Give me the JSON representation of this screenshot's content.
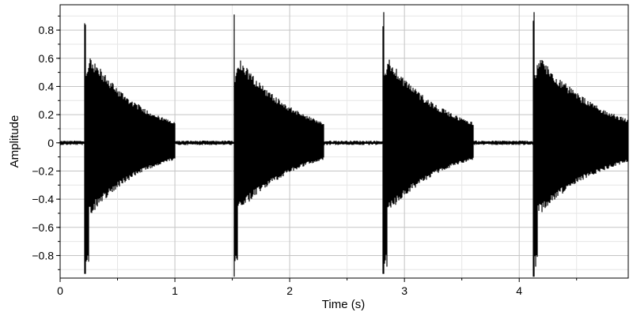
{
  "chart_data": {
    "type": "line",
    "title": "",
    "xlabel": "Time (s)",
    "ylabel": "Amplitude",
    "xlim": [
      0,
      4.95
    ],
    "ylim": [
      -0.96,
      0.98
    ],
    "grid": true,
    "x_ticks": [
      0,
      1,
      2,
      3,
      4
    ],
    "x_tick_labels": [
      "0",
      "1",
      "2",
      "3",
      "4"
    ],
    "y_ticks": [
      0.8,
      0.6,
      0.4,
      0.2,
      0,
      -0.2,
      -0.4,
      -0.6,
      -0.8
    ],
    "y_tick_labels": [
      "0.8",
      "0.6",
      "0.4",
      "0.2",
      "0",
      "−0.2",
      "−0.4",
      "−0.6",
      "−0.8"
    ],
    "line_color": "#000000",
    "grid_color": "#cccccc",
    "series": [
      {
        "bursts": [
          {
            "onset": 0.21,
            "end": 1.0,
            "peak_pos": 0.95,
            "peak_neg": -0.93,
            "body_peak": 0.62,
            "end_amplitude": 0.13
          },
          {
            "onset": 1.51,
            "end": 2.3,
            "peak_pos": 0.95,
            "peak_neg": -0.95,
            "body_peak": 0.6,
            "end_amplitude": 0.13
          },
          {
            "onset": 2.81,
            "end": 3.6,
            "peak_pos": 0.95,
            "peak_neg": -0.93,
            "body_peak": 0.6,
            "end_amplitude": 0.13
          },
          {
            "onset": 4.12,
            "end": 4.95,
            "peak_pos": 0.95,
            "peak_neg": -0.95,
            "body_peak": 0.62,
            "end_amplitude": 0.15
          }
        ],
        "noise_floor": 0.01
      }
    ]
  }
}
